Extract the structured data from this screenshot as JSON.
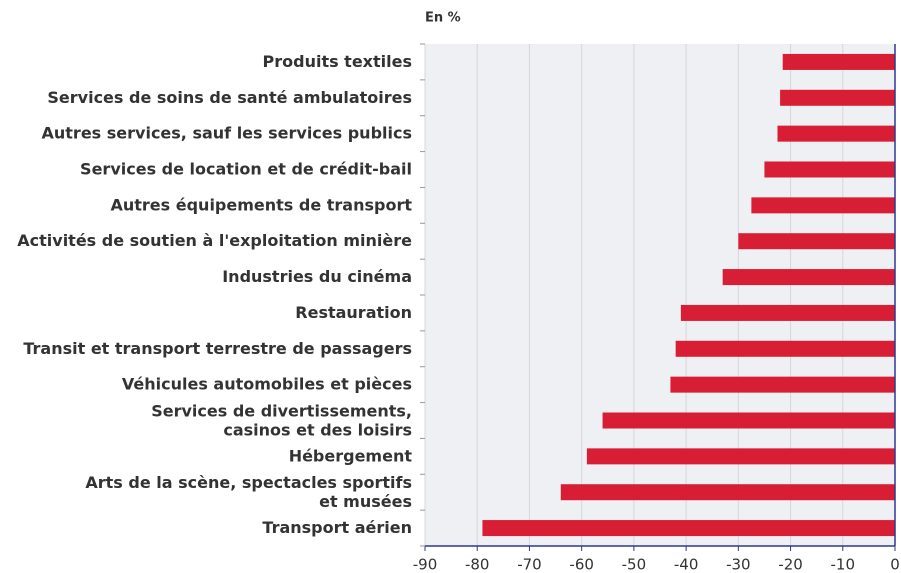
{
  "chart_data": {
    "type": "bar",
    "orientation": "horizontal",
    "title": "En %",
    "categories": [
      "Produits textiles",
      "Services de soins de santé ambulatoires",
      "Autres services, sauf les services publics",
      "Services de location et de crédit-bail",
      "Autres équipements de transport",
      "Activités de soutien à l'exploitation minière",
      "Industries du cinéma",
      "Restauration",
      "Transit et transport terrestre de passagers",
      "Véhicules automobiles et pièces",
      "Services de divertissements,\ncasinos et des loisirs",
      "Hébergement",
      "Arts de la scène, spectacles sportifs\net musées",
      "Transport aérien"
    ],
    "values": [
      -21.5,
      -22,
      -22.5,
      -25,
      -27.5,
      -30,
      -33,
      -41,
      -42,
      -43,
      -56,
      -59,
      -64,
      -79
    ],
    "color": "#d71e34",
    "xlim": [
      -90,
      0
    ],
    "xticks": [
      -90,
      -80,
      -70,
      -60,
      -50,
      -40,
      -30,
      -20,
      -10,
      0
    ],
    "grid": true
  }
}
